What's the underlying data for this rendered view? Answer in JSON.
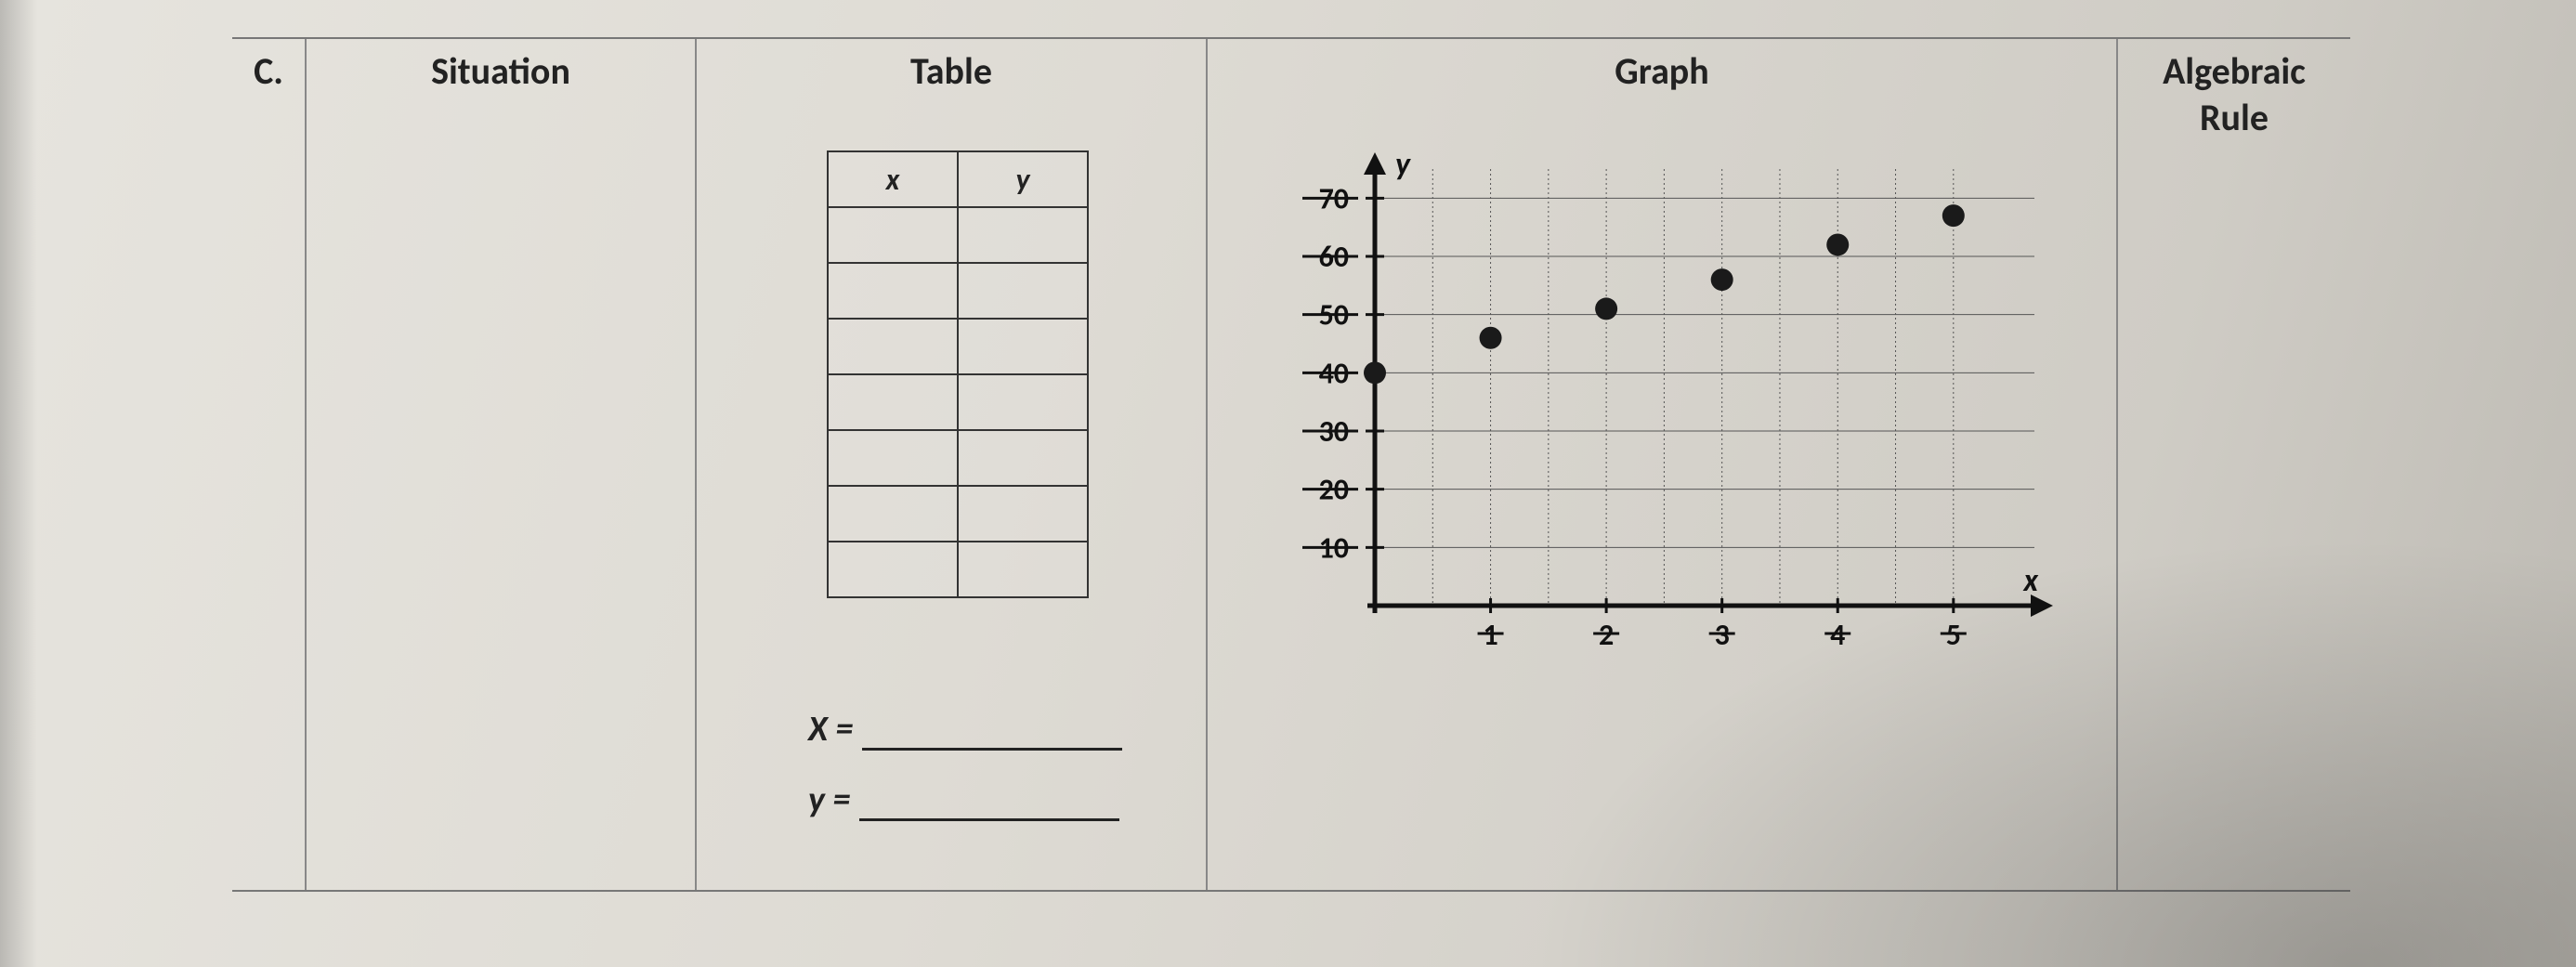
{
  "row_letter": "C.",
  "headers": {
    "situation": "Situation",
    "table": "Table",
    "graph": "Graph",
    "rule_line1": "Algebraic",
    "rule_line2": "Rule"
  },
  "xy_table": {
    "col_x": "x",
    "col_y": "y",
    "blank_rows": 7
  },
  "var_defs": {
    "x_label": "X =",
    "y_label": "y ="
  },
  "chart": {
    "type": "scatter",
    "x_axis_label": "x",
    "y_axis_label": "y",
    "xlim": [
      0,
      5.7
    ],
    "ylim": [
      0,
      75
    ],
    "xticks": [
      1,
      2,
      3,
      4,
      5
    ],
    "yticks": [
      10,
      20,
      30,
      40,
      50,
      60,
      70
    ],
    "x_grid_extra": [
      0.5,
      1.5,
      2.5,
      3.5,
      4.5
    ],
    "points": [
      {
        "x": 0,
        "y": 40
      },
      {
        "x": 1,
        "y": 46
      },
      {
        "x": 2,
        "y": 51
      },
      {
        "x": 3,
        "y": 56
      },
      {
        "x": 4,
        "y": 62
      },
      {
        "x": 5,
        "y": 67
      }
    ],
    "point_color": "#1a1a1a",
    "point_radius": 12,
    "axis_color": "#111111",
    "axis_width": 5,
    "grid_color": "#555555",
    "grid_width": 1,
    "grid_dash": "2,3",
    "tick_font_size": 32,
    "tick_font_weight": "bold",
    "axis_label_font_size": 34,
    "axis_label_font_style": "italic",
    "background": "transparent",
    "strike_ticks": true
  }
}
